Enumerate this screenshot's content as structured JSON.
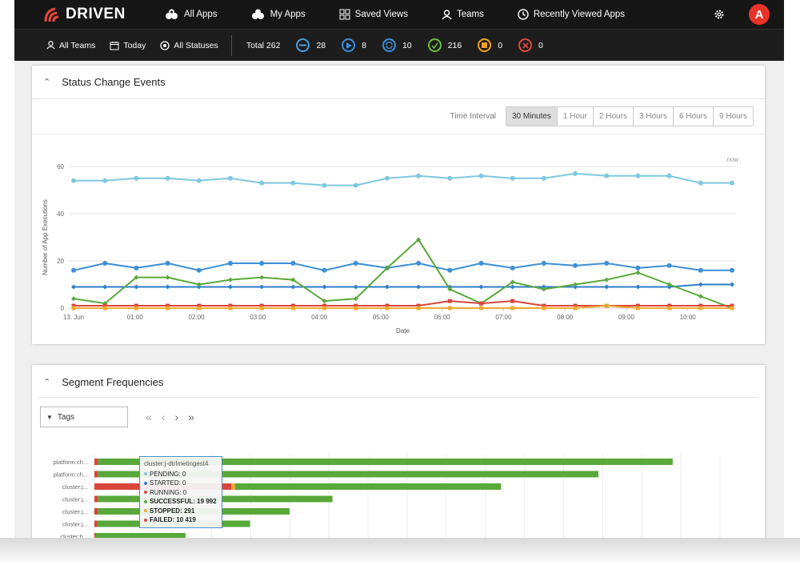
{
  "nav": {
    "logo_text": "DRIVEN",
    "items": [
      {
        "label": "All Apps",
        "icon": "apps-icon"
      },
      {
        "label": "My Apps",
        "icon": "my-apps-icon"
      },
      {
        "label": "Saved Views",
        "icon": "grid-icon"
      },
      {
        "label": "Teams",
        "icon": "teams-icon"
      },
      {
        "label": "Recently Viewed Apps",
        "icon": "clock-icon"
      }
    ],
    "avatar_letter": "A"
  },
  "filters": {
    "teams": "All Teams",
    "date": "Today",
    "statuses": "All Statuses",
    "total": "Total 262",
    "counts": [
      {
        "icon": "pending-icon",
        "value": "28",
        "color": "#4a9fe0"
      },
      {
        "icon": "running-icon",
        "value": "8",
        "color": "#3a8fdc"
      },
      {
        "icon": "started-icon",
        "value": "10",
        "color": "#3a8fdc"
      },
      {
        "icon": "successful-icon",
        "value": "216",
        "color": "#6cbf3f"
      },
      {
        "icon": "stopped-icon",
        "value": "0",
        "color": "#f0a020"
      },
      {
        "icon": "failed-icon",
        "value": "0",
        "color": "#e04a3a"
      }
    ]
  },
  "status_panel": {
    "title": "Status Change Events",
    "interval_label": "Time Interval",
    "intervals": [
      "30 Minutes",
      "1 Hour",
      "2 Hours",
      "3 Hours",
      "6 Hours",
      "9 Hours"
    ],
    "active_interval": "30 Minutes"
  },
  "chart_data": {
    "type": "line",
    "title": "",
    "xlabel": "Date",
    "ylabel": "Number of App Executions",
    "ylim": [
      0,
      60
    ],
    "yticks": [
      "0",
      "20",
      "40",
      "60"
    ],
    "xticks": [
      "13. Jun",
      "01:00",
      "02:00",
      "03:00",
      "04:00",
      "05:00",
      "06:00",
      "07:00",
      "08:00",
      "09:00",
      "10:00"
    ],
    "now_label": "now",
    "grid": true,
    "series": [
      {
        "color": "#7ec8df",
        "values": [
          54,
          54,
          55,
          55,
          54,
          55,
          53,
          53,
          52,
          52,
          55,
          56,
          55,
          56,
          55,
          55,
          57,
          56,
          56,
          56,
          53,
          53
        ]
      },
      {
        "color": "#3d8fd6",
        "values": [
          16,
          19,
          17,
          19,
          16,
          19,
          19,
          19,
          16,
          19,
          17,
          19,
          16,
          19,
          17,
          19,
          18,
          19,
          17,
          18,
          16,
          16
        ]
      },
      {
        "color": "#2f7ec8",
        "values": [
          9,
          9,
          9,
          9,
          9,
          9,
          9,
          9,
          9,
          9,
          9,
          9,
          9,
          9,
          9,
          9,
          9,
          9,
          9,
          9,
          10,
          10
        ]
      },
      {
        "color": "#5aa83a",
        "values": [
          4,
          2,
          13,
          13,
          10,
          12,
          13,
          12,
          3,
          4,
          17,
          29,
          8,
          2,
          11,
          8,
          10,
          12,
          15,
          10,
          5,
          0
        ]
      },
      {
        "color": "#d9453a",
        "values": [
          1,
          1,
          1,
          1,
          1,
          1,
          1,
          1,
          1,
          1,
          1,
          1,
          3,
          2,
          3,
          1,
          1,
          1,
          1,
          1,
          1,
          1
        ]
      },
      {
        "color": "#f0a830",
        "values": [
          0,
          0,
          0,
          0,
          0,
          0,
          0,
          0,
          0,
          0,
          0,
          0,
          0,
          0,
          0,
          0,
          0,
          1,
          0,
          0,
          0,
          0
        ]
      }
    ]
  },
  "segment_panel": {
    "title": "Segment Frequencies",
    "tags_label": "Tags",
    "rows": [
      {
        "label": "platform:ch...",
        "failed": 9,
        "stopped": 0,
        "success": 1470
      },
      {
        "label": "platform:ch...",
        "failed": 9,
        "stopped": 0,
        "success": 1280
      },
      {
        "label": "cluster:j...",
        "failed": 350,
        "stopped": 10,
        "success": 680
      },
      {
        "label": "cluster:j...",
        "failed": 9,
        "stopped": 0,
        "success": 600
      },
      {
        "label": "cluster:j...",
        "failed": 9,
        "stopped": 0,
        "success": 490
      },
      {
        "label": "cluster:j...",
        "failed": 8,
        "stopped": 0,
        "success": 390
      },
      {
        "label": "cluster:h...",
        "failed": 3,
        "stopped": 0,
        "success": 230
      }
    ],
    "tooltip": {
      "title": "cluster:j-dtrlmetingest4",
      "lines": [
        {
          "text": "PENDING: 0",
          "color": "#7ec8df"
        },
        {
          "text": "STARTED: 0",
          "color": "#2f7ec8"
        },
        {
          "text": "RUNNING: 0",
          "color": "#d9453a"
        },
        {
          "text": "SUCCESSFUL: 19 992",
          "color": "#5aa83a"
        },
        {
          "text": "STOPPED: 291",
          "color": "#f0a830"
        },
        {
          "text": "FAILED: 10 419",
          "color": "#d9453a"
        }
      ]
    }
  }
}
